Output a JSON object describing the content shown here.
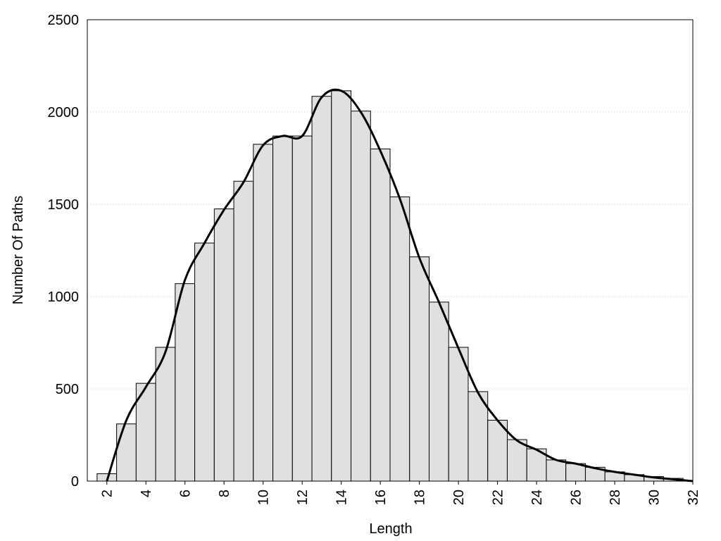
{
  "chart_data": {
    "type": "histogram",
    "xlabel": "Length",
    "ylabel": "Number Of Paths",
    "bins": [
      1.5,
      2.5,
      3.5,
      4.5,
      5.5,
      6.5,
      7.5,
      8.5,
      9.5,
      10.5,
      11.5,
      12.5,
      13.5,
      14.5,
      15.5,
      16.5,
      17.5,
      18.5,
      19.5,
      20.5,
      21.5,
      22.5,
      23.5,
      24.5,
      25.5,
      26.5,
      27.5,
      28.5,
      29.5,
      30.5,
      31.5
    ],
    "values": [
      40,
      310,
      530,
      725,
      1070,
      1290,
      1475,
      1625,
      1825,
      1870,
      1870,
      2085,
      2115,
      2005,
      1800,
      1540,
      1215,
      970,
      725,
      485,
      330,
      225,
      175,
      115,
      95,
      75,
      50,
      35,
      25,
      15
    ],
    "color": "#e0e0e0",
    "edgecolor": "#000000",
    "curve": {
      "x": [
        2,
        3,
        4,
        5,
        6,
        7,
        8,
        9,
        10,
        11,
        12,
        13,
        14,
        15,
        16,
        17,
        18,
        19,
        20,
        21,
        22,
        23,
        24,
        25,
        26,
        27,
        28,
        29,
        30,
        31,
        32
      ],
      "values": [
        0,
        330,
        510,
        700,
        1090,
        1290,
        1470,
        1620,
        1820,
        1870,
        1870,
        2080,
        2115,
        2000,
        1790,
        1530,
        1210,
        970,
        720,
        480,
        330,
        220,
        170,
        115,
        95,
        70,
        50,
        35,
        20,
        10,
        0
      ],
      "color": "#000000"
    },
    "xlim": [
      1,
      32
    ],
    "ylim": [
      0,
      2500
    ],
    "xticks": [
      2,
      4,
      6,
      8,
      10,
      12,
      14,
      16,
      18,
      20,
      22,
      24,
      26,
      28,
      30,
      32
    ],
    "yticks": [
      0,
      500,
      1000,
      1500,
      2000,
      2500
    ],
    "grid": true
  }
}
